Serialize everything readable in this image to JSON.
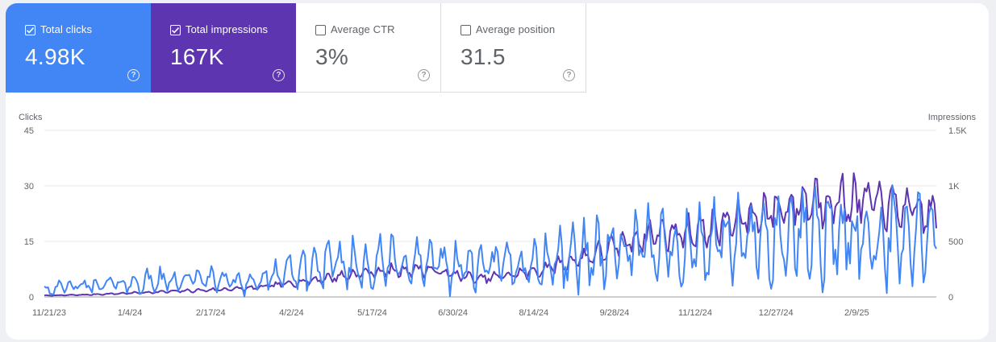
{
  "metrics": [
    {
      "label": "Total clicks",
      "value": "4.98K",
      "checked": true,
      "color": "#4285f4"
    },
    {
      "label": "Total impressions",
      "value": "167K",
      "checked": true,
      "color": "#5e35b1"
    },
    {
      "label": "Average CTR",
      "value": "3%",
      "checked": false
    },
    {
      "label": "Average position",
      "value": "31.5",
      "checked": false
    }
  ],
  "help_icon": "question-circle-icon",
  "chart_data": {
    "type": "line",
    "ylabel_left": "Clicks",
    "ylabel_right": "Impressions",
    "y_left_ticks": [
      "0",
      "15",
      "30",
      "45"
    ],
    "y_right_ticks": [
      "0",
      "500",
      "1K",
      "1.5K"
    ],
    "ylim_left": [
      0,
      45
    ],
    "ylim_right": [
      0,
      1500
    ],
    "x_tick_labels": [
      "11/21/23",
      "1/4/24",
      "2/17/24",
      "4/2/24",
      "5/17/24",
      "6/30/24",
      "8/14/24",
      "9/28/24",
      "11/12/24",
      "12/27/24",
      "2/9/25"
    ],
    "x_range": [
      "2023-11-21",
      "2025-03-21"
    ],
    "grid": true,
    "series": [
      {
        "name": "Clicks",
        "axis": "left",
        "color": "#4285f4",
        "x_start": "2023-11-21",
        "monthly_values": [
          {
            "month": "2023-11",
            "y": 2
          },
          {
            "month": "2023-12",
            "y": 3
          },
          {
            "month": "2024-01",
            "y": 4
          },
          {
            "month": "2024-02",
            "y": 5
          },
          {
            "month": "2024-03",
            "y": 4
          },
          {
            "month": "2024-04",
            "y": 8
          },
          {
            "month": "2024-05",
            "y": 9
          },
          {
            "month": "2024-06",
            "y": 9
          },
          {
            "month": "2024-07",
            "y": 8
          },
          {
            "month": "2024-08",
            "y": 9
          },
          {
            "month": "2024-09",
            "y": 12
          },
          {
            "month": "2024-10",
            "y": 13
          },
          {
            "month": "2024-11",
            "y": 14
          },
          {
            "month": "2024-12",
            "y": 15
          },
          {
            "month": "2025-01",
            "y": 17
          },
          {
            "month": "2025-02",
            "y": 16
          },
          {
            "month": "2025-03",
            "y": 15
          }
        ]
      },
      {
        "name": "Impressions",
        "axis": "right",
        "color": "#5e35b1",
        "x_start": "2023-11-21",
        "monthly_values": [
          {
            "month": "2023-11",
            "y": 10
          },
          {
            "month": "2023-12",
            "y": 20
          },
          {
            "month": "2024-01",
            "y": 40
          },
          {
            "month": "2024-02",
            "y": 60
          },
          {
            "month": "2024-03",
            "y": 80
          },
          {
            "month": "2024-04",
            "y": 150
          },
          {
            "month": "2024-05",
            "y": 220
          },
          {
            "month": "2024-06",
            "y": 250
          },
          {
            "month": "2024-07",
            "y": 160
          },
          {
            "month": "2024-08",
            "y": 230
          },
          {
            "month": "2024-09",
            "y": 380
          },
          {
            "month": "2024-10",
            "y": 560
          },
          {
            "month": "2024-11",
            "y": 600
          },
          {
            "month": "2024-12",
            "y": 750
          },
          {
            "month": "2025-01",
            "y": 880
          },
          {
            "month": "2025-02",
            "y": 850
          },
          {
            "month": "2025-03",
            "y": 750
          }
        ]
      }
    ]
  }
}
